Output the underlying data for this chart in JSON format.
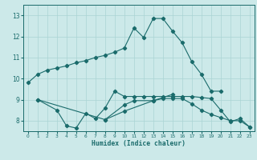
{
  "bg_color": "#cce9e9",
  "grid_color": "#aad4d4",
  "line_color": "#1a6b6b",
  "xlabel": "Humidex (Indice chaleur)",
  "ylim": [
    7.5,
    13.5
  ],
  "xlim": [
    -0.5,
    23.5
  ],
  "yticks": [
    8,
    9,
    10,
    11,
    12,
    13
  ],
  "xticks": [
    0,
    1,
    2,
    3,
    4,
    5,
    6,
    7,
    8,
    9,
    10,
    11,
    12,
    13,
    14,
    15,
    16,
    17,
    18,
    19,
    20,
    21,
    22,
    23
  ],
  "lines": [
    {
      "x": [
        0,
        1,
        2,
        3,
        4,
        5,
        6,
        7,
        8,
        9,
        10,
        11,
        12,
        13,
        14,
        15,
        16,
        17,
        18,
        19,
        20
      ],
      "y": [
        9.8,
        10.2,
        10.4,
        10.5,
        10.6,
        10.75,
        10.85,
        11.0,
        11.1,
        11.25,
        11.45,
        12.4,
        11.95,
        12.85,
        12.85,
        12.25,
        11.7,
        10.8,
        10.2,
        9.4,
        9.4
      ]
    },
    {
      "x": [
        1,
        3,
        4,
        5,
        6,
        7,
        8,
        9,
        10,
        11,
        12,
        13,
        14,
        15,
        16,
        17,
        18,
        19,
        20,
        21,
        22,
        23
      ],
      "y": [
        9.0,
        8.5,
        7.75,
        7.65,
        8.35,
        8.1,
        8.6,
        9.4,
        9.15,
        9.15,
        9.15,
        9.15,
        9.15,
        9.15,
        9.15,
        9.15,
        9.1,
        9.05,
        8.5,
        7.95,
        8.1,
        7.7
      ]
    },
    {
      "x": [
        1,
        8,
        10,
        11,
        13,
        14,
        15,
        16,
        17,
        18,
        19,
        20,
        21,
        22,
        23
      ],
      "y": [
        9.0,
        8.05,
        8.75,
        8.95,
        8.95,
        9.05,
        9.05,
        9.05,
        8.8,
        8.5,
        8.3,
        8.15,
        8.0,
        8.0,
        7.7
      ]
    },
    {
      "x": [
        8,
        10,
        13,
        15
      ],
      "y": [
        8.05,
        8.45,
        8.95,
        9.25
      ]
    }
  ]
}
